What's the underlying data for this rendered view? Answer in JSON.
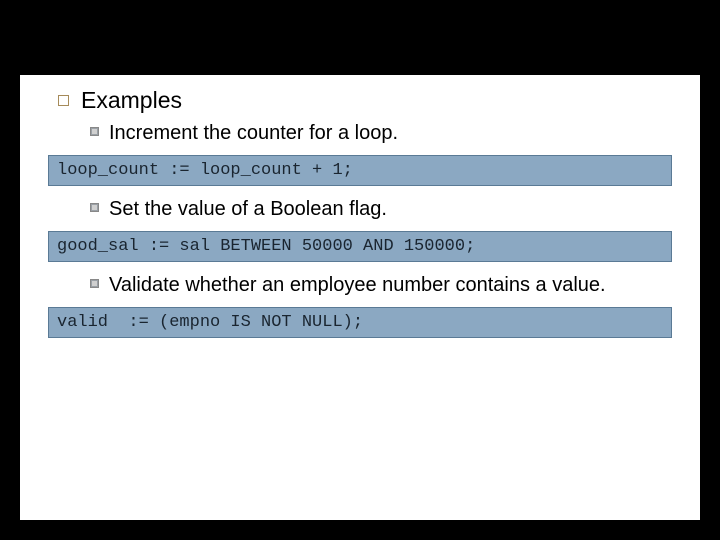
{
  "slide": {
    "heading": "Examples",
    "items": [
      {
        "text": "Increment the counter for a loop.",
        "code": "loop_count := loop_count + 1;"
      },
      {
        "text": "Set the value of a Boolean flag.",
        "code": "good_sal := sal BETWEEN 50000 AND 150000;"
      },
      {
        "text": "Validate whether an employee number contains a value.",
        "code": "valid  := (empno IS NOT NULL);"
      }
    ]
  },
  "style": {
    "background": "#000000",
    "slide_background": "#ffffff",
    "heading_fontsize": 23,
    "body_fontsize": 20,
    "code_fontsize": 17,
    "code_background": "#8ba8c2",
    "code_border": "#5a7a95",
    "code_textcolor": "#1a2530",
    "bullet1_border": "#a68b5a",
    "bullet2_fill": "#9aa0a6",
    "font_family_body": "Century Gothic",
    "font_family_code": "Courier New"
  }
}
